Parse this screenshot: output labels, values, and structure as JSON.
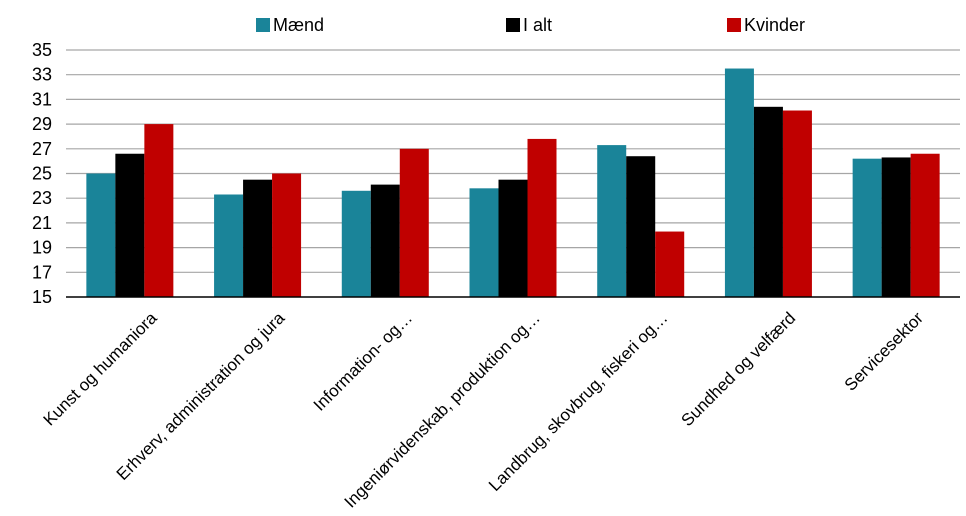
{
  "chart_data": {
    "type": "bar",
    "categories": [
      "Kunst og humaniora",
      "Erhverv, administration og jura",
      "Information- og…",
      "Ingeniørvidenskab, produktion og…",
      "Landbrug, skovbrug, fiskeri og…",
      "Sundhed og velfærd",
      "Servicesektor"
    ],
    "series": [
      {
        "name": "Mænd",
        "color": "#1a8499",
        "values": [
          25.0,
          23.3,
          23.6,
          23.8,
          27.3,
          33.5,
          26.2
        ]
      },
      {
        "name": "I alt",
        "color": "#000000",
        "values": [
          26.6,
          24.5,
          24.1,
          24.5,
          26.4,
          30.4,
          26.3
        ]
      },
      {
        "name": "Kvinder",
        "color": "#c00000",
        "values": [
          29.0,
          25.0,
          27.0,
          27.8,
          20.3,
          30.1,
          26.6
        ]
      }
    ],
    "yticks": [
      "15",
      "17",
      "19",
      "21",
      "23",
      "25",
      "27",
      "29",
      "31",
      "33",
      "35"
    ],
    "ylim": [
      15,
      35
    ],
    "grid": true,
    "legend_position": "top"
  }
}
